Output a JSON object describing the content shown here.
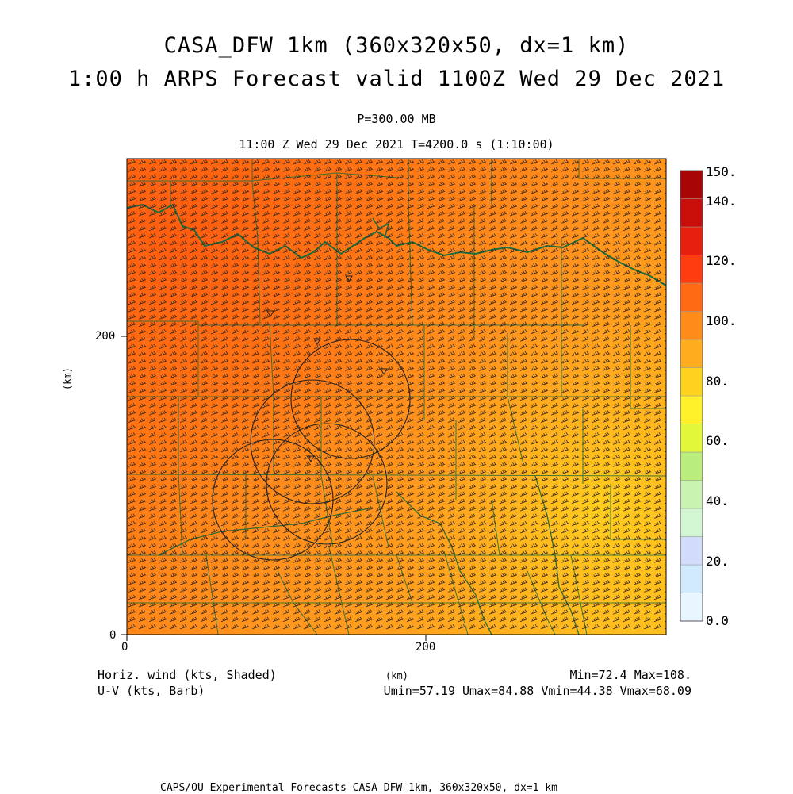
{
  "title_line1": "CASA_DFW 1km (360x320x50, dx=1 km)",
  "title_line2": "1:00 h ARPS Forecast valid 1100Z Wed 29 Dec 2021",
  "pressure_label": "P=300.00 MB",
  "time_label": "11:00 Z Wed 29 Dec 2021   T=4200.0 s (1:10:00)",
  "axis": {
    "x_unit": "(km)",
    "y_unit": "(km)",
    "x_ticks": [
      "0",
      "200"
    ],
    "y_ticks": [
      "0",
      "200"
    ]
  },
  "colorbar": {
    "labels": [
      "150.",
      "140.",
      "120.",
      "100.",
      "80.",
      "60.",
      "40.",
      "20.",
      "0.0"
    ],
    "colors": [
      "#e8f6ff",
      "#d2eafd",
      "#d0dcfa",
      "#d2f7d2",
      "#c8f3b1",
      "#b9ee7c",
      "#e3f73a",
      "#fff02a",
      "#ffd21e",
      "#ffad1e",
      "#ff8c1a",
      "#ff6a12",
      "#ff3b10",
      "#e6200c",
      "#c90e0a",
      "#a80505"
    ]
  },
  "legend": {
    "left_line1": "Horiz. wind (kts, Shaded)",
    "left_line2": "U-V (kts, Barb)",
    "right_line1": "Min=72.4 Max=108.",
    "right_line2": "Umin=57.19 Umax=84.88 Vmin=44.38 Vmax=68.09"
  },
  "footer": "CAPS/OU Experimental Forecasts  CASA DFW 1km, 360x320x50, dx=1 km",
  "field": {
    "min": 72.4,
    "max": 108.0,
    "u_min": 57.19,
    "u_max": 84.88,
    "v_min": 44.38,
    "v_max": 68.09
  }
}
